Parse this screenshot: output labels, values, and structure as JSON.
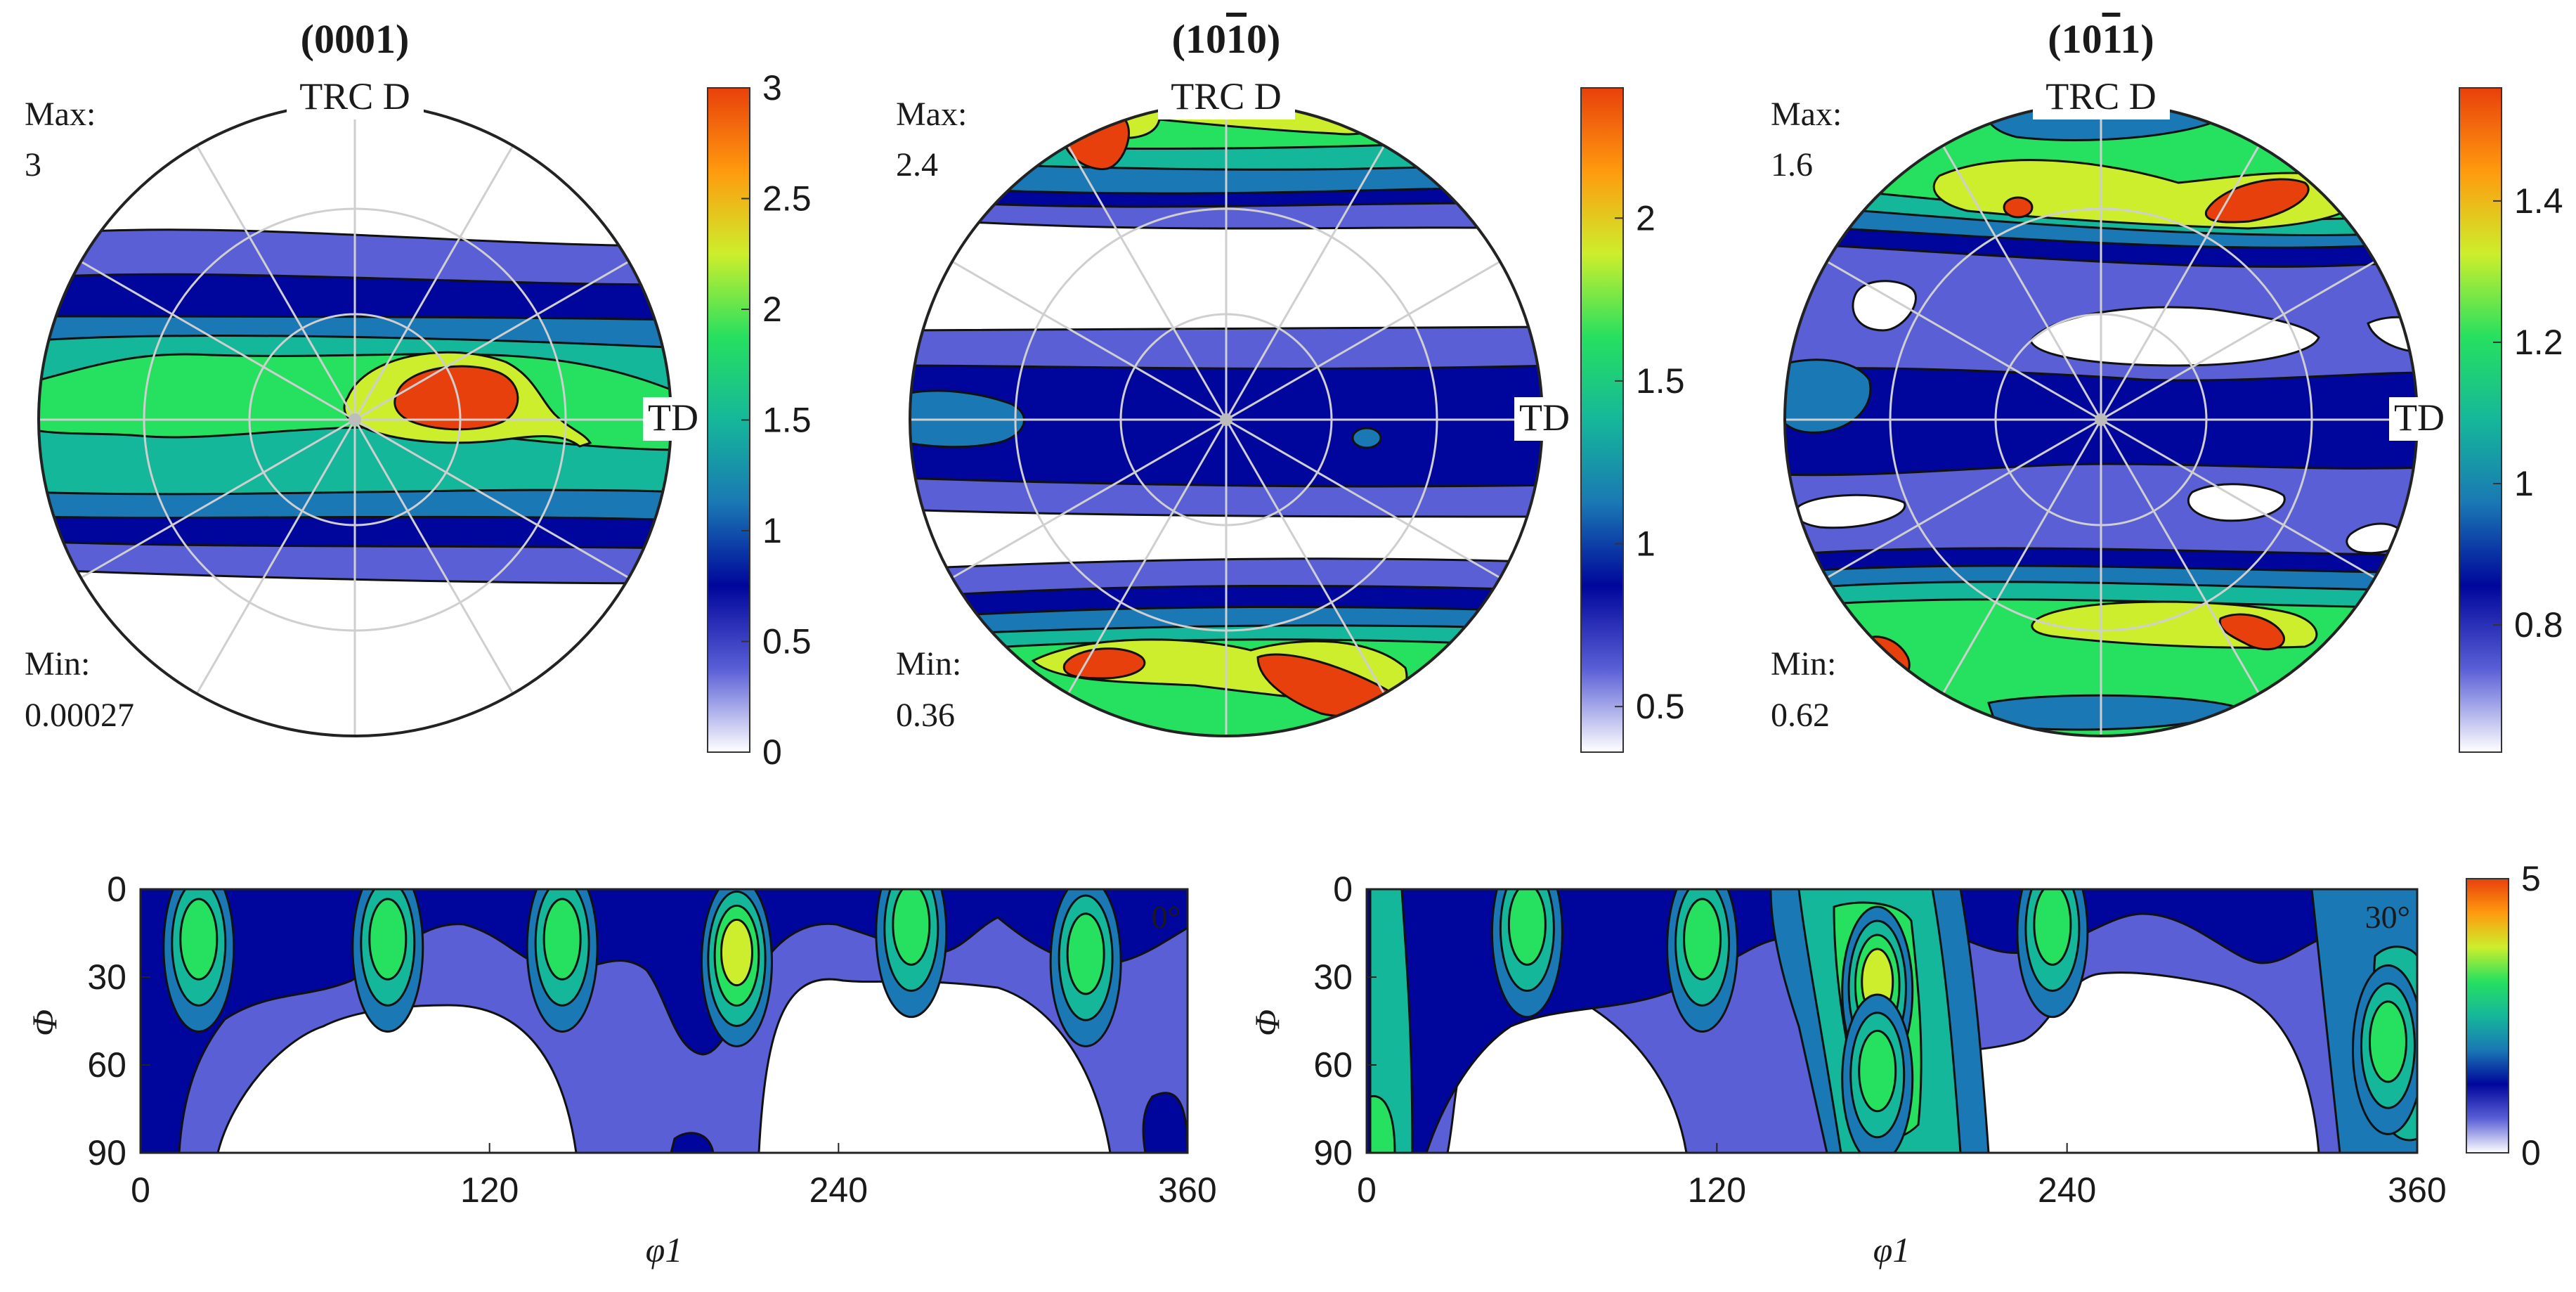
{
  "chart_data": [
    {
      "type": "contour",
      "title": "(0001)",
      "labels": {
        "top": "TRC D",
        "right": "TD"
      },
      "max_label": "Max:",
      "max_value": "3",
      "min_label": "Min:",
      "min_value": "0.00027",
      "colorbar": {
        "range": [
          0,
          3
        ],
        "ticks": [
          "0",
          "0.5",
          "1",
          "1.5",
          "2",
          "2.5",
          "3"
        ]
      },
      "features": [
        {
          "shape": "horizontal-band",
          "angle_deg": 0,
          "level": 0.7
        },
        {
          "shape": "horizontal-band",
          "angle_deg": 0,
          "level": 1.7
        },
        {
          "shape": "peak",
          "x": 0.38,
          "y": -0.08,
          "level": 3.0
        }
      ]
    },
    {
      "type": "contour",
      "title": "(10-10)",
      "title_main": "(10",
      "title_bar": "1",
      "title_end": "0)",
      "labels": {
        "top": "TRC D",
        "right": "TD"
      },
      "max_label": "Max:",
      "max_value": "2.4",
      "min_label": "Min:",
      "min_value": "0.36",
      "colorbar": {
        "range": [
          0.36,
          2.4
        ],
        "ticks": [
          "0.5",
          "1",
          "1.5",
          "2"
        ]
      },
      "features": [
        {
          "shape": "horizontal-band",
          "angle_deg": 0,
          "level": 0.7
        },
        {
          "shape": "cap-top",
          "level": 1.8
        },
        {
          "shape": "cap-bottom",
          "level": 1.8
        },
        {
          "shape": "peak",
          "x": -0.3,
          "y": -0.85,
          "level": 2.4
        },
        {
          "shape": "peak",
          "x": 0.25,
          "y": 0.82,
          "level": 2.4
        },
        {
          "shape": "peak",
          "x": 0.5,
          "y": 0.85,
          "level": 2.4
        }
      ]
    },
    {
      "type": "contour",
      "title": "(10-11)",
      "title_main": "(10",
      "title_bar": "1",
      "title_end": "1)",
      "labels": {
        "top": "TRC D",
        "right": "TD"
      },
      "max_label": "Max:",
      "max_value": "1.6",
      "min_label": "Min:",
      "min_value": "0.62",
      "colorbar": {
        "range": [
          0.62,
          1.56
        ],
        "ticks": [
          "0.8",
          "1",
          "1.2",
          "1.4"
        ]
      },
      "features": [
        {
          "shape": "horizontal-band",
          "angle_deg": 0,
          "level": 0.85
        },
        {
          "shape": "cap-top",
          "level": 1.3
        },
        {
          "shape": "cap-bottom",
          "level": 1.3
        },
        {
          "shape": "peak",
          "x": 0.4,
          "y": -0.6,
          "level": 1.55
        },
        {
          "shape": "peak",
          "x": 0.45,
          "y": 0.65,
          "level": 1.55
        },
        {
          "shape": "peak",
          "x": -0.75,
          "y": 0.7,
          "level": 1.55
        }
      ]
    },
    {
      "type": "odf-section",
      "corner_label": "0°",
      "xlabel": "φ1",
      "ylabel": "Φ",
      "x_ticks": [
        "0",
        "120",
        "240",
        "360"
      ],
      "y_ticks": [
        "0",
        "30",
        "60",
        "90"
      ],
      "xlim": [
        0,
        360
      ],
      "ylim": [
        0,
        90
      ],
      "colorbar": {
        "range": [
          0,
          5
        ],
        "ticks": [
          "0",
          "5"
        ]
      },
      "peaks": [
        {
          "phi1": 20,
          "Phi": 15,
          "level": 2.8
        },
        {
          "phi1": 85,
          "Phi": 15,
          "level": 2.8
        },
        {
          "phi1": 145,
          "Phi": 15,
          "level": 2.8
        },
        {
          "phi1": 205,
          "Phi": 20,
          "level": 4.0
        },
        {
          "phi1": 265,
          "Phi": 10,
          "level": 2.8
        },
        {
          "phi1": 325,
          "Phi": 20,
          "level": 2.8
        }
      ]
    },
    {
      "type": "odf-section",
      "corner_label": "30°",
      "xlabel": "φ1",
      "ylabel": "Φ",
      "x_ticks": [
        "0",
        "120",
        "240",
        "360"
      ],
      "y_ticks": [
        "0",
        "30",
        "60",
        "90"
      ],
      "xlim": [
        0,
        360
      ],
      "ylim": [
        0,
        90
      ],
      "peaks": [
        {
          "phi1": 55,
          "Phi": 10,
          "level": 2.8
        },
        {
          "phi1": 115,
          "Phi": 15,
          "level": 2.8
        },
        {
          "phi1": 175,
          "Phi": 30,
          "level": 4.0
        },
        {
          "phi1": 175,
          "Phi": 60,
          "level": 3.0
        },
        {
          "phi1": 235,
          "Phi": 10,
          "level": 2.8
        },
        {
          "phi1": 350,
          "Phi": 50,
          "level": 2.8
        }
      ]
    }
  ],
  "colors": {
    "scale": [
      "#ffffff",
      "#5a5fd6",
      "#00069b",
      "#1a78b4",
      "#15b79a",
      "#26e060",
      "#cdee2c",
      "#ff9a0e",
      "#e8400c"
    ],
    "grid": "#cfcfcf",
    "outline": "#111111"
  }
}
